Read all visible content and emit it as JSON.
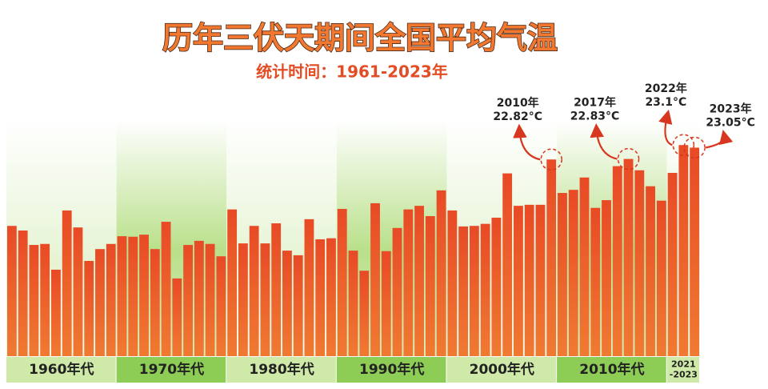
{
  "chart_data": {
    "type": "bar",
    "title": "历年三伏天期间全国平均气温",
    "subtitle": "统计时间：1961-2023年",
    "categories": [
      null,
      null,
      null,
      null,
      null,
      null,
      null,
      null,
      null,
      null,
      null,
      null,
      null,
      null,
      null,
      null,
      null,
      null,
      null,
      null,
      null,
      null,
      null,
      null,
      null,
      null,
      null,
      null,
      null,
      null,
      null,
      null,
      null,
      null,
      null,
      null,
      null,
      null,
      null,
      null,
      null,
      null,
      null,
      null,
      null,
      null,
      null,
      null,
      null,
      null,
      null,
      null,
      null,
      null,
      null,
      null,
      null,
      null,
      null,
      null,
      null,
      null,
      null
    ],
    "values": [
      21.53,
      21.44,
      21.16,
      21.18,
      20.68,
      21.83,
      21.5,
      20.85,
      21.08,
      21.18,
      21.33,
      21.32,
      21.36,
      21.08,
      21.61,
      20.51,
      21.16,
      21.24,
      21.18,
      20.94,
      21.85,
      21.19,
      21.53,
      21.19,
      21.58,
      21.05,
      20.96,
      21.66,
      21.27,
      21.29,
      21.86,
      21.05,
      20.66,
      21.97,
      21.04,
      21.49,
      21.85,
      21.92,
      21.72,
      22.22,
      21.83,
      21.52,
      21.53,
      21.57,
      21.69,
      22.55,
      21.92,
      21.94,
      21.94,
      22.82,
      22.17,
      22.23,
      22.47,
      21.88,
      22.03,
      22.69,
      22.83,
      22.61,
      22.3,
      22.02,
      22.56,
      23.1,
      23.05
    ],
    "value_labels": [
      null,
      null,
      null,
      null,
      null,
      null,
      null,
      null,
      null,
      null,
      null,
      null,
      null,
      null,
      null,
      null,
      null,
      null,
      null,
      null,
      null,
      null,
      null,
      null,
      null,
      null,
      null,
      null,
      null,
      null,
      null,
      null,
      null,
      null,
      null,
      null,
      null,
      null,
      null,
      null,
      null,
      null,
      null,
      null,
      null,
      null,
      null,
      null,
      null,
      "22.82°C",
      null,
      null,
      null,
      null,
      null,
      null,
      "22.83°C",
      null,
      null,
      null,
      null,
      "23.1°C",
      "23.05°C"
    ],
    "annotation_years": [
      null,
      null,
      null,
      null,
      null,
      null,
      null,
      null,
      null,
      null,
      null,
      null,
      null,
      null,
      null,
      null,
      null,
      null,
      null,
      null,
      null,
      null,
      null,
      null,
      null,
      null,
      null,
      null,
      null,
      null,
      null,
      null,
      null,
      null,
      null,
      null,
      null,
      null,
      null,
      null,
      null,
      null,
      null,
      null,
      null,
      null,
      null,
      null,
      null,
      "2010年",
      null,
      null,
      null,
      null,
      null,
      null,
      "2017年",
      null,
      null,
      null,
      null,
      "2022年",
      "2023年"
    ],
    "groups": [
      {
        "label": [
          "1960年代"
        ],
        "count": 10
      },
      {
        "label": [
          "1970年代"
        ],
        "count": 10
      },
      {
        "label": [
          "1980年代"
        ],
        "count": 10
      },
      {
        "label": [
          "1990年代"
        ],
        "count": 10
      },
      {
        "label": [
          "2000年代"
        ],
        "count": 10
      },
      {
        "label": [
          "2010年代"
        ],
        "count": 10
      },
      {
        "label": [
          "2021",
          "-2023"
        ],
        "count": 3
      }
    ],
    "color": "#e8542a",
    "ylim": [
      19,
      25
    ]
  }
}
